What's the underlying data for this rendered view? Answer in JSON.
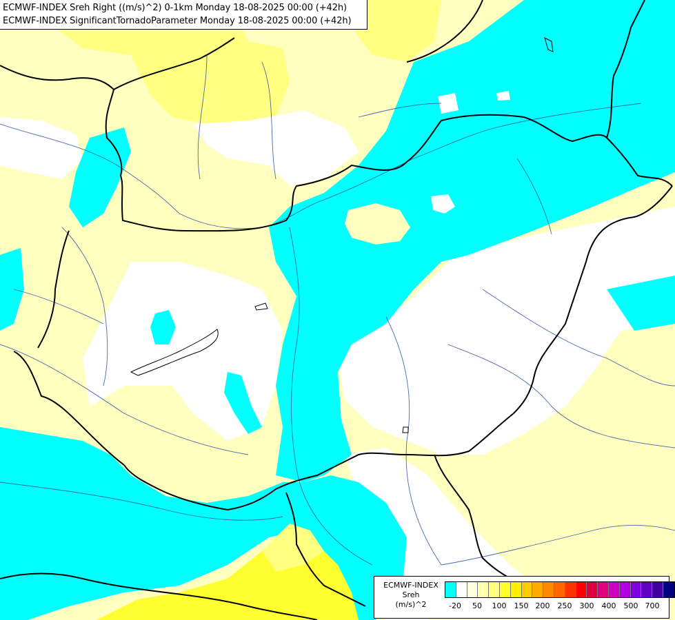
{
  "title": {
    "line1": "ECMWF-INDEX Sreh Right ((m/s)^2) 0-1km Monday 18-08-2025 00:00 (+42h)",
    "line2": "ECMWF-INDEX SignificantTornadoParameter Monday 18-08-2025 00:00 (+42h)"
  },
  "legend": {
    "line1": "ECMWF-INDEX",
    "line2": "Sreh",
    "line3": "(m/s)^2",
    "colors": [
      "#00ffff",
      "#ffffff",
      "#ffffe0",
      "#ffffb0",
      "#ffff80",
      "#ffff30",
      "#ffee00",
      "#ffcc00",
      "#ffaa00",
      "#ff8800",
      "#ff6600",
      "#ff3300",
      "#ff0000",
      "#e00040",
      "#e00080",
      "#d000c0",
      "#b000e0",
      "#8000e0",
      "#6000c0",
      "#4000a0",
      "#000080"
    ],
    "ticks": [
      "-20",
      "50",
      "100",
      "150",
      "200",
      "250",
      "300",
      "400",
      "500",
      "700"
    ]
  },
  "map_colors": {
    "cyan": "#00ffff",
    "white": "#ffffff",
    "pale_yellow": "#ffffc0",
    "light_yellow": "#ffff80",
    "yellow": "#ffff30",
    "borders": "#000000",
    "rivers": "#2a4ea8"
  }
}
